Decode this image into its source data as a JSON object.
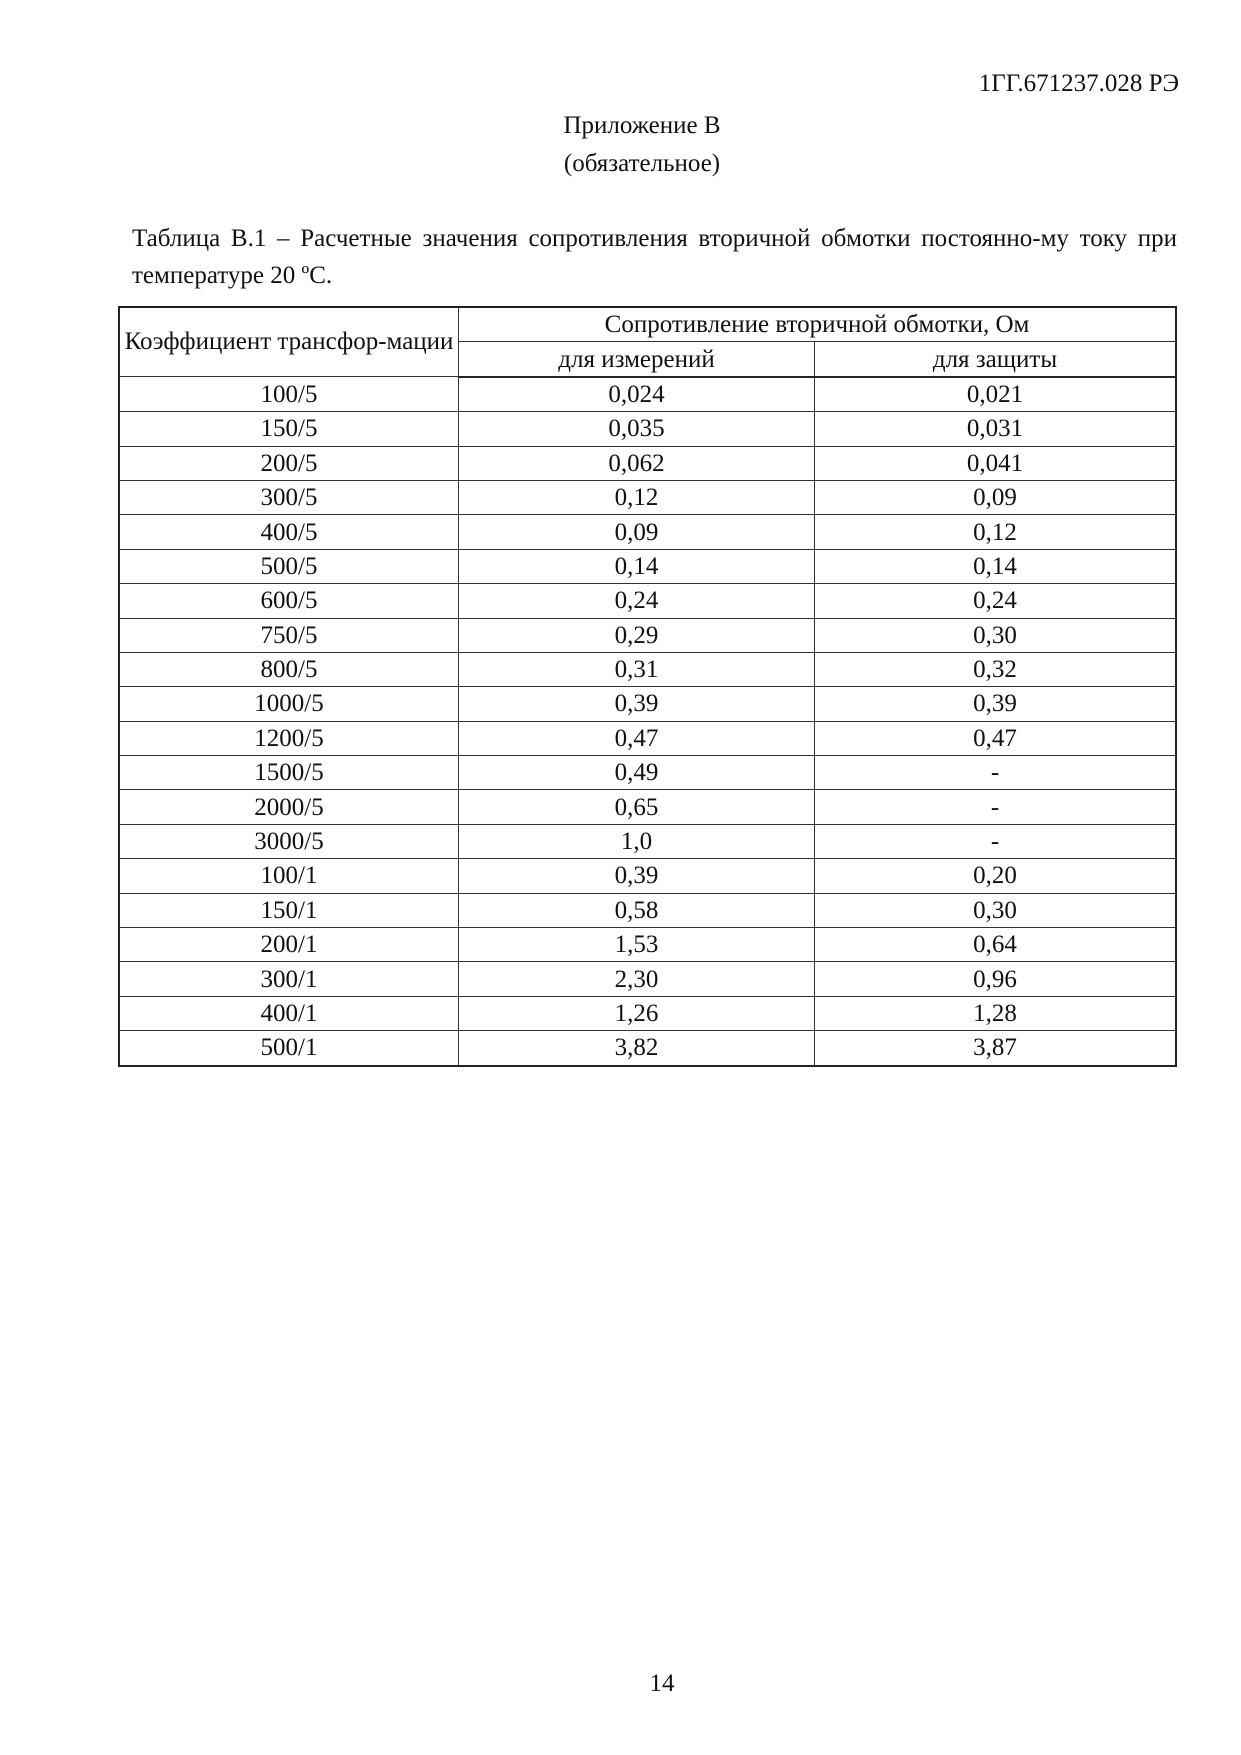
{
  "header": {
    "doc_code": "1ГГ.671237.028 РЭ"
  },
  "appendix": {
    "title": "Приложение В",
    "subtitle": "(обязательное)"
  },
  "table": {
    "caption": "Таблица В.1 – Расчетные значения сопротивления вторичной обмотки постоянно-му току при температуре 20 ºС.",
    "col1_header": "Коэффициент трансфор-мации",
    "group_header": "Сопротивление вторичной обмотки, Ом",
    "col2_header": "для измерений",
    "col3_header": "для защиты",
    "rows": [
      [
        "100/5",
        "0,024",
        "0,021"
      ],
      [
        "150/5",
        "0,035",
        "0,031"
      ],
      [
        "200/5",
        "0,062",
        "0,041"
      ],
      [
        "300/5",
        "0,12",
        "0,09"
      ],
      [
        "400/5",
        "0,09",
        "0,12"
      ],
      [
        "500/5",
        "0,14",
        "0,14"
      ],
      [
        "600/5",
        "0,24",
        "0,24"
      ],
      [
        "750/5",
        "0,29",
        "0,30"
      ],
      [
        "800/5",
        "0,31",
        "0,32"
      ],
      [
        "1000/5",
        "0,39",
        "0,39"
      ],
      [
        "1200/5",
        "0,47",
        "0,47"
      ],
      [
        "1500/5",
        "0,49",
        "-"
      ],
      [
        "2000/5",
        "0,65",
        "-"
      ],
      [
        "3000/5",
        "1,0",
        "-"
      ],
      [
        "100/1",
        "0,39",
        "0,20"
      ],
      [
        "150/1",
        "0,58",
        "0,30"
      ],
      [
        "200/1",
        "1,53",
        "0,64"
      ],
      [
        "300/1",
        "2,30",
        "0,96"
      ],
      [
        "400/1",
        "1,26",
        "1,28"
      ],
      [
        "500/1",
        "3,82",
        "3,87"
      ]
    ]
  },
  "footer": {
    "page_number": "14"
  }
}
